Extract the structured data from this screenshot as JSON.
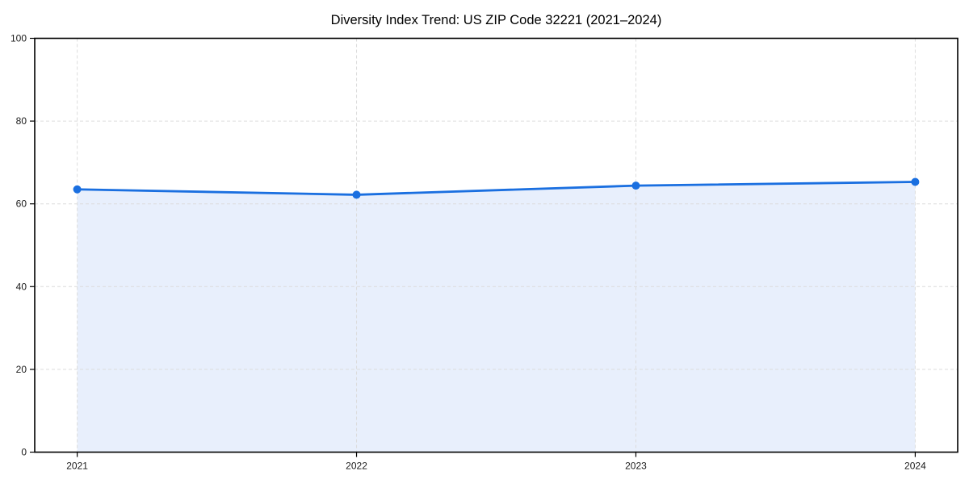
{
  "chart_data": {
    "type": "area",
    "title": "Diversity Index Trend: US ZIP Code 32221 (2021–2024)",
    "x": [
      2021,
      2022,
      2023,
      2024
    ],
    "xtick_labels": [
      "2021",
      "2022",
      "2023",
      "2024"
    ],
    "values": [
      63.5,
      62.2,
      64.4,
      65.3
    ],
    "xlabel": "",
    "ylabel": "",
    "ylim": [
      0,
      100
    ],
    "yticks": [
      0,
      20,
      40,
      60,
      80,
      100
    ],
    "grid": "dashed-both-axes",
    "legend": "none",
    "colors": {
      "line": "#1a6fe0",
      "marker": "#1a6fe0",
      "fill": "#e8effc",
      "grid": "#dcdcdc",
      "frame": "#000000",
      "tick_label": "#1a1a1a",
      "title": "#000000",
      "background": "#ffffff"
    }
  }
}
